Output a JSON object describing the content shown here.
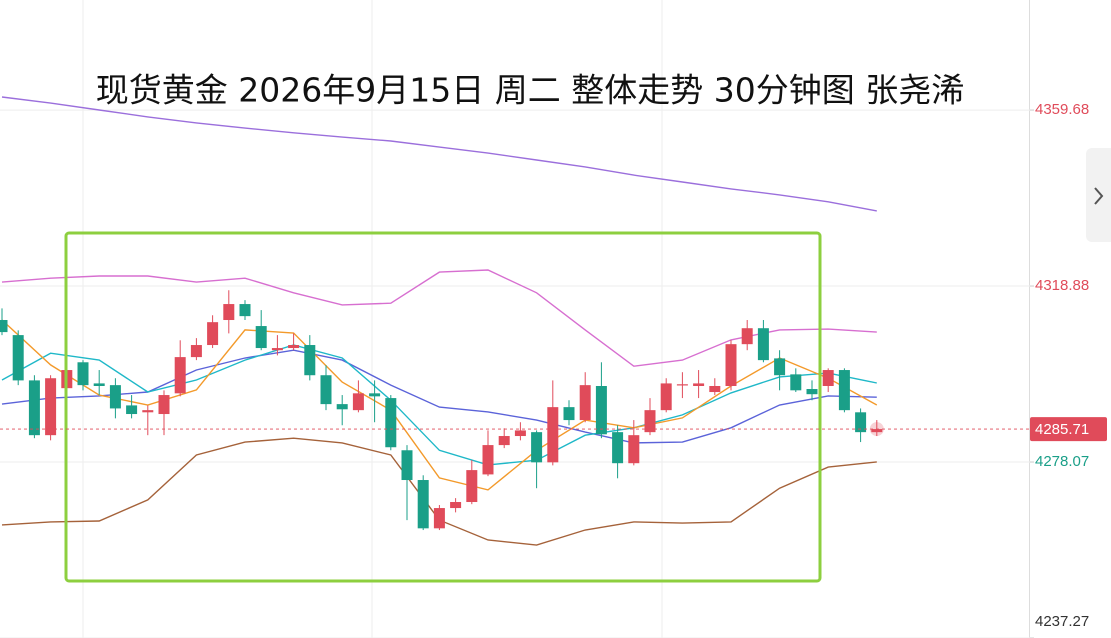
{
  "chart_data": {
    "type": "candlestick",
    "title": "现货黄金 2026年9月15日 周二 整体走势 30分钟图 张尧浠",
    "up_color": "#e04b5a",
    "down_color": "#1a9f88",
    "ylim": [
      4237.27,
      4385.2
    ],
    "yticks": [
      4359.68,
      4318.88,
      4278.07,
      4237.27
    ],
    "ytick_colors": [
      "#e04b5a",
      "#e04b5a",
      "#1a9f88",
      "#333333"
    ],
    "grid": true,
    "last_price": 4285.71,
    "last_price_color": "#e04b5a",
    "open": [
      4311.0,
      4307.5,
      4297.0,
      4284.3,
      4295.2,
      4301.2,
      4296.3,
      4295.9,
      4291.2,
      4289.6,
      4289.2,
      4294.0,
      4302.4,
      4305.2,
      4311.0,
      4314.7,
      4309.6,
      4304.0,
      4304.5,
      4305.2,
      4298.2,
      4291.5,
      4290.1,
      4294.0,
      4292.9,
      4280.8,
      4273.9,
      4262.7,
      4267.4,
      4268.8,
      4275.2,
      4282.0,
      4284.1,
      4285.0,
      4278.0,
      4290.8,
      4287.8,
      4295.7,
      4285.0,
      4277.8,
      4285.0,
      4290.1,
      4295.9,
      4295.7,
      4294.3,
      4295.7,
      4305.4,
      4309.1,
      4302.1,
      4298.4,
      4295.0,
      4295.7,
      4299.4,
      4289.6,
      4285.0
    ],
    "high": [
      4313.7,
      4308.6,
      4298.2,
      4298.2,
      4300.5,
      4301.7,
      4299.4,
      4297.5,
      4293.6,
      4291.2,
      4294.7,
      4306.3,
      4306.8,
      4312.1,
      4317.9,
      4315.6,
      4313.3,
      4307.5,
      4307.9,
      4307.5,
      4300.5,
      4293.6,
      4297.0,
      4297.0,
      4293.6,
      4282.0,
      4275.0,
      4268.1,
      4269.7,
      4278.5,
      4285.4,
      4285.9,
      4287.3,
      4285.4,
      4297.0,
      4292.4,
      4298.9,
      4301.2,
      4286.6,
      4287.8,
      4292.9,
      4297.5,
      4298.9,
      4299.4,
      4297.5,
      4306.3,
      4311.0,
      4311.0,
      4304.0,
      4299.8,
      4297.0,
      4299.8,
      4299.8,
      4290.5,
      4287.8
    ],
    "low": [
      4307.5,
      4295.9,
      4283.6,
      4283.1,
      4294.3,
      4294.7,
      4293.6,
      4288.2,
      4288.2,
      4284.3,
      4284.3,
      4293.3,
      4301.7,
      4304.5,
      4307.9,
      4311.0,
      4304.0,
      4302.8,
      4304.0,
      4297.0,
      4290.1,
      4286.6,
      4289.6,
      4287.3,
      4280.8,
      4264.6,
      4262.3,
      4262.3,
      4266.4,
      4268.3,
      4274.8,
      4281.3,
      4283.1,
      4272.0,
      4277.3,
      4286.6,
      4287.3,
      4283.6,
      4274.3,
      4277.3,
      4284.3,
      4289.6,
      4292.9,
      4292.9,
      4293.6,
      4294.7,
      4304.0,
      4301.2,
      4294.7,
      4294.3,
      4292.4,
      4294.3,
      4289.6,
      4282.7,
      4284.1
    ],
    "close": [
      4308.2,
      4297.0,
      4284.3,
      4297.5,
      4299.4,
      4295.9,
      4295.7,
      4290.5,
      4289.2,
      4290.1,
      4293.6,
      4302.4,
      4305.2,
      4310.5,
      4314.7,
      4311.9,
      4304.5,
      4304.5,
      4305.2,
      4298.2,
      4291.5,
      4290.3,
      4294.0,
      4293.3,
      4281.5,
      4273.9,
      4262.7,
      4267.4,
      4268.8,
      4276.2,
      4282.0,
      4284.1,
      4285.4,
      4278.0,
      4290.8,
      4287.8,
      4295.9,
      4284.5,
      4277.8,
      4284.3,
      4290.1,
      4296.3,
      4296.1,
      4296.3,
      4295.7,
      4305.4,
      4309.1,
      4301.7,
      4298.2,
      4294.7,
      4293.8,
      4299.4,
      4290.1,
      4285.0,
      4285.71
    ],
    "overlays": [
      {
        "color": "#9b6fdc",
        "x": [
          0,
          3,
          6,
          9,
          12,
          15,
          18,
          21,
          24,
          27,
          30,
          33,
          36,
          39,
          42,
          45,
          48,
          51,
          54
        ],
        "values": [
          4362.7,
          4361.3,
          4359.7,
          4358.1,
          4356.7,
          4355.5,
          4354.4,
          4353.4,
          4352.5,
          4351.1,
          4349.7,
          4348.1,
          4346.5,
          4344.6,
          4343.0,
          4341.4,
          4340.0,
          4338.4,
          4336.3
        ]
      },
      {
        "color": "#d76fd0",
        "x": [
          0,
          3,
          6,
          9,
          12,
          15,
          18,
          21,
          24,
          27,
          30,
          33,
          36,
          39,
          42,
          45,
          48,
          51,
          54
        ],
        "values": [
          4319.8,
          4320.7,
          4321.2,
          4321.2,
          4319.8,
          4320.7,
          4317.3,
          4314.5,
          4314.9,
          4322.1,
          4322.6,
          4317.3,
          4308.7,
          4300.3,
          4301.7,
          4306.4,
          4308.7,
          4308.9,
          4308.2
        ]
      },
      {
        "color": "#a5623a",
        "x": [
          0,
          3,
          6,
          9,
          12,
          15,
          18,
          21,
          24,
          27,
          30,
          33,
          36,
          39,
          42,
          45,
          48,
          51,
          54
        ],
        "values": [
          4263.5,
          4264.2,
          4264.4,
          4269.3,
          4279.7,
          4282.7,
          4283.6,
          4282.5,
          4279.7,
          4264.6,
          4260.0,
          4258.8,
          4262.3,
          4264.2,
          4263.9,
          4264.2,
          4272.0,
          4276.9,
          4278.1
        ]
      },
      {
        "color": "#5b63d9",
        "x": [
          0,
          3,
          6,
          9,
          12,
          15,
          18,
          21,
          24,
          27,
          30,
          33,
          36,
          39,
          42,
          45,
          48,
          51,
          54
        ],
        "values": [
          4291.5,
          4292.9,
          4293.4,
          4294.3,
          4299.4,
          4302.2,
          4304.0,
          4301.7,
          4295.9,
          4290.8,
          4289.7,
          4287.8,
          4285.0,
          4282.5,
          4282.7,
          4286.0,
          4291.3,
          4293.4,
          4293.1
        ]
      },
      {
        "color": "#1fb8c8",
        "x": [
          0,
          3,
          6,
          9,
          12,
          15,
          18,
          21,
          24,
          27,
          30,
          33,
          36,
          39,
          42,
          45,
          48,
          51,
          54
        ],
        "values": [
          4297.1,
          4303.3,
          4301.7,
          4294.3,
          4297.1,
          4301.7,
          4305.2,
          4302.2,
          4292.4,
          4280.8,
          4277.4,
          4278.5,
          4284.3,
          4286.0,
          4289.0,
          4294.1,
          4297.8,
          4298.7,
          4296.4
        ]
      },
      {
        "color": "#f39a2b",
        "x": [
          0,
          3,
          6,
          9,
          12,
          15,
          18,
          21,
          24,
          27,
          30,
          33,
          36,
          39,
          42,
          45,
          48,
          51,
          54
        ],
        "values": [
          4311.0,
          4300.6,
          4293.6,
          4291.3,
          4294.8,
          4308.7,
          4308.0,
          4296.6,
          4290.1,
          4274.4,
          4271.6,
          4280.8,
          4287.8,
          4286.0,
          4288.3,
          4295.7,
          4302.2,
          4297.5,
          4291.3
        ]
      }
    ]
  }
}
